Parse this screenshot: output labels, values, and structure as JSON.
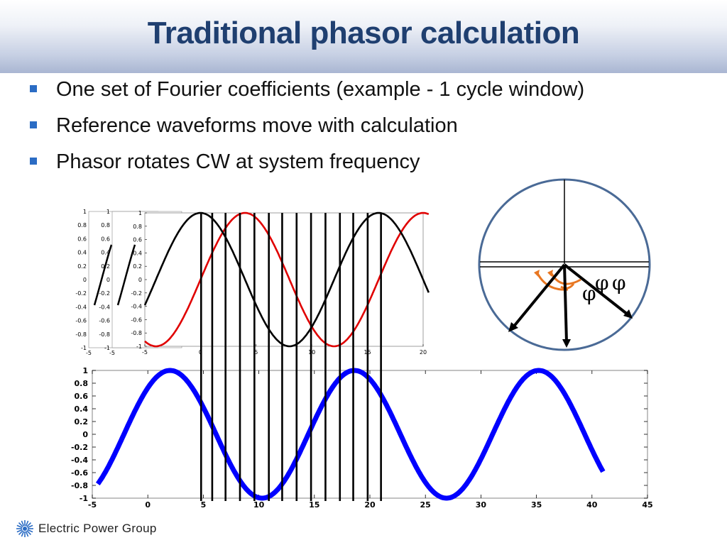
{
  "slide": {
    "title": "Traditional phasor calculation",
    "bullets": [
      "One set of Fourier coefficients (example - 1 cycle window)",
      "Reference waveforms move with calculation",
      "Phasor rotates CW at system frequency"
    ],
    "footer": {
      "logo_icon": "starburst-icon",
      "company": "Electric Power Group"
    }
  },
  "colors": {
    "title": "#1f3f70",
    "bullet": "#2b6cc4",
    "signal": "#0000ff",
    "reference_sine": "#e00000",
    "reference_cosine": "#000000",
    "circle": "#4a6a96",
    "arc": "#e87722"
  },
  "phasor_diagram": {
    "angle_symbols": [
      "φ",
      "φ",
      "φ"
    ]
  },
  "chart_data": [
    {
      "type": "line",
      "name": "reference-waveforms",
      "xlim": [
        -5,
        20
      ],
      "ylim": [
        -1,
        1
      ],
      "x_ticks": [
        "-5",
        "0",
        "5",
        "10",
        "15",
        "20"
      ],
      "y_ticks": [
        "1",
        "0.8",
        "0.6",
        "0.4",
        "0.2",
        "0",
        "-0.2",
        "-0.4",
        "-0.6",
        "-0.8",
        "-1"
      ],
      "ghost_axes_count": 2,
      "series": [
        {
          "color": "#e00000",
          "function": "sin",
          "period": 16,
          "phase": 0,
          "x_range": [
            -5,
            20.5
          ]
        },
        {
          "color": "#000000",
          "function": "cos",
          "period": 16,
          "phase": 0,
          "x_range": [
            -5,
            20.5
          ]
        }
      ],
      "ghost_series": [
        {
          "color": "#000000",
          "period": 16,
          "phase": 0,
          "x_range": [
            -5,
            -2.6
          ]
        },
        {
          "color": "#000000",
          "period": 16,
          "phase": 0,
          "x_range": [
            -5,
            -2.6
          ]
        }
      ]
    },
    {
      "type": "line",
      "name": "input-signal",
      "xlim": [
        -5,
        45
      ],
      "ylim": [
        -1,
        1
      ],
      "x_ticks": [
        "-5",
        "0",
        "5",
        "10",
        "15",
        "20",
        "25",
        "30",
        "35",
        "40",
        "45"
      ],
      "y_ticks": [
        "1",
        "0.8",
        "0.6",
        "0.4",
        "0.2",
        "0",
        "-0.2",
        "-0.4",
        "-0.6",
        "-0.8",
        "-1"
      ],
      "series": [
        {
          "color": "#0000ff",
          "function": "cos",
          "period": 16.6,
          "peak_at": 2,
          "x_range": [
            -4.5,
            41
          ]
        }
      ],
      "sample_lines_x": [
        4.8,
        5.8,
        7.0,
        8.3,
        9.6,
        10.9,
        12.1,
        13.4,
        14.7,
        16.0,
        17.3,
        18.5,
        19.8,
        21.0
      ]
    }
  ]
}
